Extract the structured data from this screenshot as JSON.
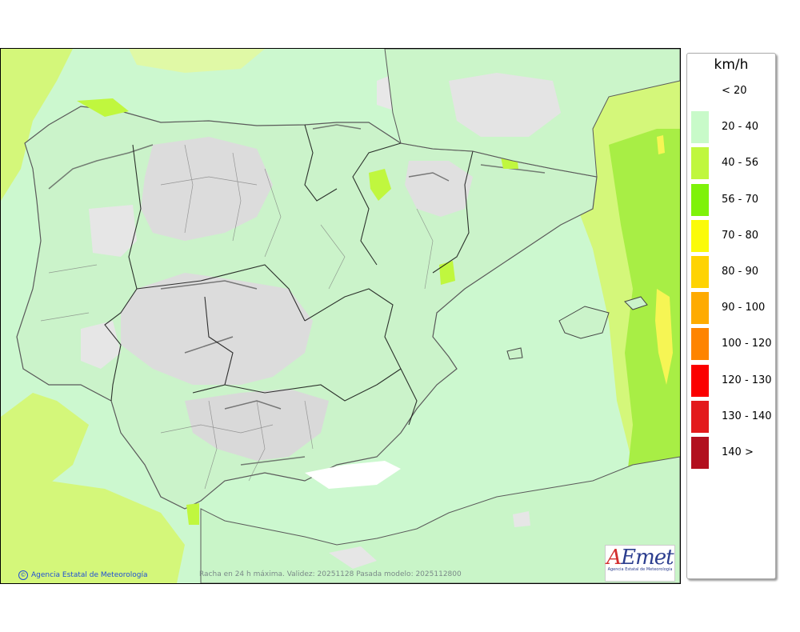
{
  "legend": {
    "title": "km/h",
    "items": [
      {
        "label": "< 20",
        "color": "#ffffff"
      },
      {
        "label": "20 - 40",
        "color": "#c8fac9"
      },
      {
        "label": "40 - 56",
        "color": "#c0f73e"
      },
      {
        "label": "56 - 70",
        "color": "#7ef20a"
      },
      {
        "label": "70 - 80",
        "color": "#fbfb0a"
      },
      {
        "label": "80 - 90",
        "color": "#fed303"
      },
      {
        "label": "90 - 100",
        "color": "#feab00"
      },
      {
        "label": "100 - 120",
        "color": "#fe8400"
      },
      {
        "label": "120 - 130",
        "color": "#fb0000"
      },
      {
        "label": "130 - 140",
        "color": "#e31a1c"
      },
      {
        "label": "140 >",
        "color": "#b2101f"
      }
    ]
  },
  "footer": {
    "credit": "Agencia Estatal de Meteorología",
    "validity": "Racha en 24 h máxima. Validez: 20251128 Pasada modelo: 2025112800"
  },
  "logo": {
    "text": "AEmet",
    "subtitle": "Agencia Estatal de Meteorología"
  },
  "colors": {
    "sea_base": "#ccf8cf",
    "band_40_56": "#d4f77a",
    "band_56_70": "#a8ee45",
    "band_70_80": "#f6f554",
    "calm_land": "#dcdcdc",
    "relief_dark": "#555555",
    "border_line": "#444444"
  }
}
